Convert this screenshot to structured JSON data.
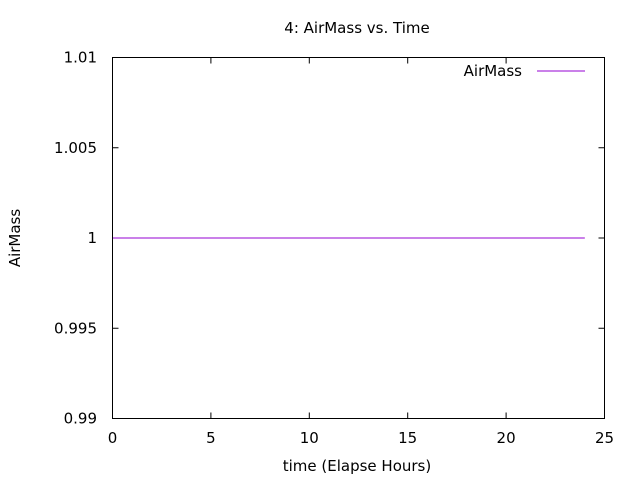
{
  "chart_data": {
    "type": "line",
    "title": "4: AirMass vs. Time",
    "xlabel": "time (Elapse Hours)",
    "ylabel": "AirMass",
    "xlim": [
      0,
      25
    ],
    "ylim": [
      0.99,
      1.01
    ],
    "xticks": [
      0,
      5,
      10,
      15,
      20,
      25
    ],
    "xtick_labels": [
      "0",
      "5",
      "10",
      "15",
      "20",
      "25"
    ],
    "yticks": [
      0.99,
      0.995,
      1.0,
      1.005,
      1.01
    ],
    "ytick_labels": [
      "0.99",
      "0.995",
      "1",
      "1.005",
      "1.01"
    ],
    "grid": false,
    "legend_position": "top-right",
    "series": [
      {
        "name": "AirMass",
        "color": "#9400d3",
        "x": [
          0,
          24
        ],
        "y": [
          1.0,
          1.0
        ]
      }
    ]
  }
}
